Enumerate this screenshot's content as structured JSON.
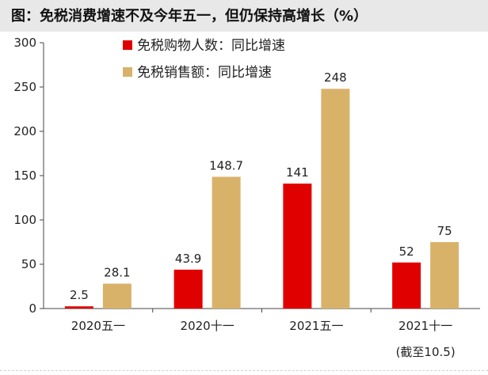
{
  "chart_data": {
    "type": "bar",
    "title": "图：免税消费增速不及今年五一，但仍保持高增长（%）",
    "categories": [
      "2020五一",
      "2020十一",
      "2021五一",
      "2021十一"
    ],
    "category_sublabels": [
      "",
      "",
      "",
      "(截至10.5)"
    ],
    "series": [
      {
        "name": "免税购物人数：同比增速",
        "values": [
          2.5,
          43.9,
          141,
          52
        ],
        "labels": [
          "2.5",
          "43.9",
          "141",
          "52"
        ]
      },
      {
        "name": "免税销售额：同比增速",
        "values": [
          28.1,
          148.7,
          248,
          75
        ],
        "labels": [
          "28.1",
          "148.7",
          "248",
          "75"
        ]
      }
    ],
    "yticks": [
      "0",
      "50",
      "100",
      "150",
      "200",
      "250",
      "300"
    ],
    "ylim": [
      0,
      300
    ],
    "legend_position": "top-left",
    "grid": false,
    "colors": [
      "#e00000",
      "#d9b26a"
    ]
  }
}
